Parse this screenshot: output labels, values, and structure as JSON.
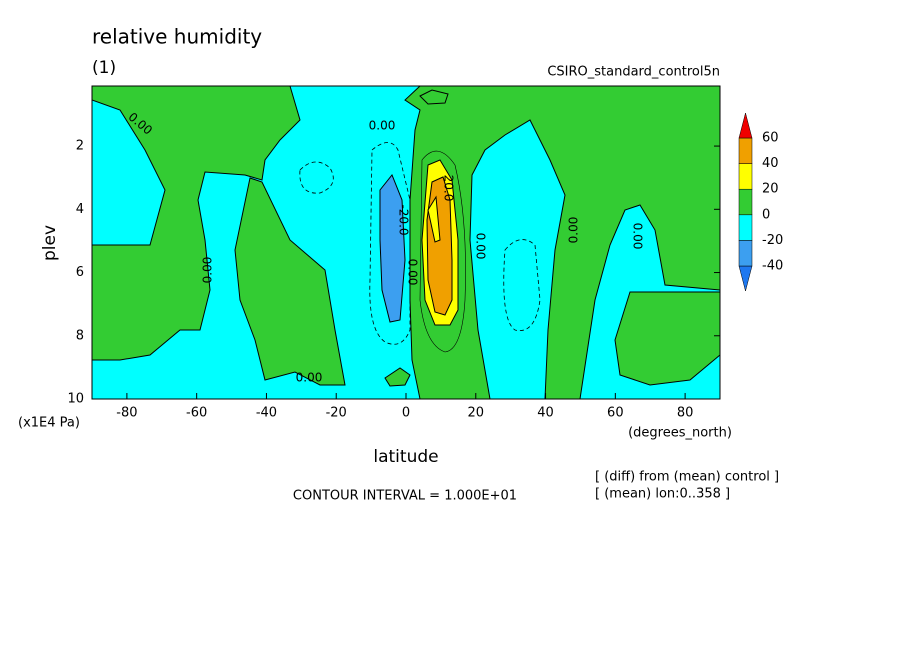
{
  "chart_data": {
    "type": "contour",
    "title": "relative humidity",
    "subtitle": "(1)",
    "model": "CSIRO_standard_control5n",
    "y_label": "plev",
    "y_unit": "(x1E4 Pa)",
    "x_label": "latitude",
    "x_unit": "(degrees_north)",
    "contour_interval": "CONTOUR INTERVAL = 1.000E+01",
    "notes": [
      "[ (diff) from (mean) control ]",
      "[ (mean) lon:0..358 ]"
    ],
    "xlim": [
      -90,
      90
    ],
    "xticks": [
      -80,
      -60,
      -40,
      -20,
      0,
      20,
      40,
      60,
      80
    ],
    "ylim": [
      0.1,
      10
    ],
    "y_inverted": true,
    "yticks": [
      2,
      4,
      6,
      8,
      10
    ],
    "colorbar": {
      "levels": [
        -40,
        -20,
        0,
        20,
        40,
        60
      ],
      "colors": [
        "#1e78f0",
        "#3c9ff0",
        "#00ffff",
        "#33cc33",
        "#ffff00",
        "#f0a000",
        "#f00000"
      ]
    },
    "contour_labels": [
      "0.00",
      "0.00",
      "0.00",
      "0.00",
      "-20.0",
      "0.00",
      "20.0",
      "0.00",
      "0.00",
      "0.00"
    ]
  }
}
